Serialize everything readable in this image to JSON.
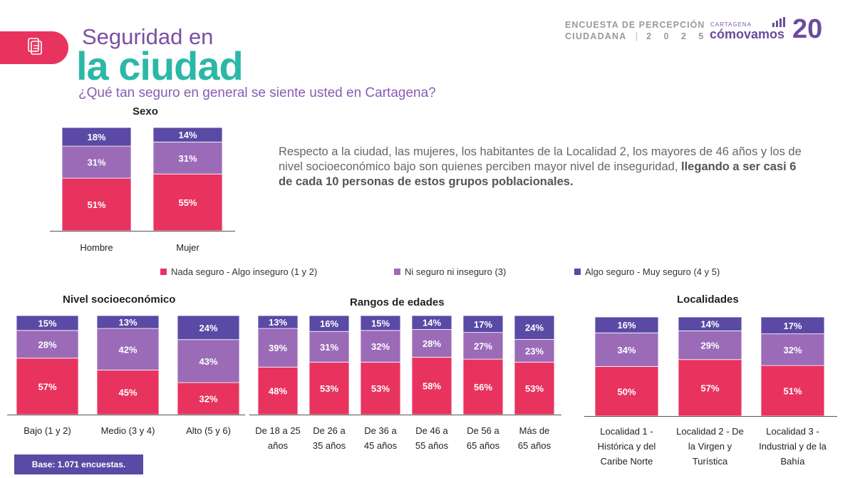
{
  "header": {
    "survey_line1": "ENCUESTA DE PERCEPCIÓN",
    "survey_line2": "CIUDADANA",
    "survey_year": "2 0 2 5",
    "logo_small": "CARTAGENA",
    "logo_main": "cómovamos",
    "logo_badge": "20"
  },
  "title": {
    "line1": "Seguridad en",
    "line2": "la ciudad",
    "question": "¿Qué tan seguro en general se siente usted en Cartagena?"
  },
  "intro": {
    "text": "Respecto a la ciudad, las mujeres, los habitantes de la Localidad 2, los mayores de 46 años y los de nivel socioeconómico bajo son quienes perciben mayor nivel de inseguridad, ",
    "bold": "llegando a ser casi 6 de cada 10 personas de estos grupos poblacionales."
  },
  "legend": [
    {
      "label": "Nada seguro - Algo inseguro (1 y 2)",
      "color": "#e8335f"
    },
    {
      "label": "Ni seguro ni inseguro (3)",
      "color": "#9b6bb8"
    },
    {
      "label": "Algo seguro - Muy seguro (4 y 5)",
      "color": "#5a4aa5"
    }
  ],
  "footer": {
    "base": "Base: 1.071 encuestas."
  },
  "chart_data": [
    {
      "type": "bar",
      "title": "Sexo",
      "stacked": true,
      "categories": [
        [
          "Hombre"
        ],
        [
          "Mujer"
        ]
      ],
      "series": [
        {
          "name": "Nada seguro - Algo inseguro (1 y 2)",
          "values": [
            51,
            55
          ]
        },
        {
          "name": "Ni seguro ni inseguro (3)",
          "values": [
            31,
            31
          ]
        },
        {
          "name": "Algo seguro - Muy seguro (4 y 5)",
          "values": [
            18,
            14
          ]
        }
      ]
    },
    {
      "type": "bar",
      "title": "Nivel socioeconómico",
      "stacked": true,
      "categories": [
        [
          "Bajo (1 y 2)"
        ],
        [
          "Medio (3 y 4)"
        ],
        [
          "Alto (5 y 6)"
        ]
      ],
      "series": [
        {
          "name": "Nada seguro - Algo inseguro (1 y 2)",
          "values": [
            57,
            45,
            32
          ]
        },
        {
          "name": "Ni seguro ni inseguro (3)",
          "values": [
            28,
            42,
            43
          ]
        },
        {
          "name": "Algo seguro - Muy seguro (4 y 5)",
          "values": [
            15,
            13,
            24
          ]
        }
      ]
    },
    {
      "type": "bar",
      "title": "Rangos de edades",
      "stacked": true,
      "categories": [
        [
          "De 18 a 25",
          "años"
        ],
        [
          "De 26 a",
          "35 años"
        ],
        [
          "De 36 a",
          "45 años"
        ],
        [
          "De 46 a",
          "55 años"
        ],
        [
          "De 56 a",
          "65 años"
        ],
        [
          "Más de",
          "65 años"
        ]
      ],
      "series": [
        {
          "name": "Nada seguro - Algo inseguro (1 y 2)",
          "values": [
            48,
            53,
            53,
            58,
            56,
            53
          ]
        },
        {
          "name": "Ni seguro ni inseguro (3)",
          "values": [
            39,
            31,
            32,
            28,
            27,
            23
          ]
        },
        {
          "name": "Algo seguro - Muy seguro (4 y 5)",
          "values": [
            13,
            16,
            15,
            14,
            17,
            24
          ]
        }
      ]
    },
    {
      "type": "bar",
      "title": "Localidades",
      "stacked": true,
      "categories": [
        [
          "Localidad 1 -",
          "Histórica y del",
          "Caribe Norte"
        ],
        [
          "Localidad 2 - De",
          "la Virgen y",
          "Turística"
        ],
        [
          "Localidad 3 -",
          "Industrial y de la",
          "Bahía"
        ]
      ],
      "series": [
        {
          "name": "Nada seguro - Algo inseguro (1 y 2)",
          "values": [
            50,
            57,
            51
          ]
        },
        {
          "name": "Ni seguro ni inseguro (3)",
          "values": [
            34,
            29,
            32
          ]
        },
        {
          "name": "Algo seguro - Muy seguro (4 y 5)",
          "values": [
            16,
            14,
            17
          ]
        }
      ]
    }
  ]
}
